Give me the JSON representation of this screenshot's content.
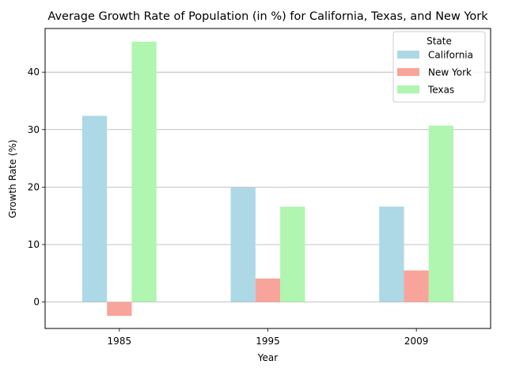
{
  "chart_data": {
    "type": "bar",
    "title": "Average Growth Rate of Population (in %) for California, Texas, and New York",
    "xlabel": "Year",
    "ylabel": "Growth Rate (%)",
    "categories": [
      "1985",
      "1995",
      "2009"
    ],
    "series": [
      {
        "name": "California",
        "values": [
          32.4,
          19.9,
          16.6
        ],
        "color": "#add8e6"
      },
      {
        "name": "New York",
        "values": [
          -2.4,
          4.1,
          5.5
        ],
        "color": "#f9a49a"
      },
      {
        "name": "Texas",
        "values": [
          45.3,
          16.6,
          30.7
        ],
        "color": "#b0f5b0"
      }
    ],
    "ylim": [
      -4.6,
      47.6
    ],
    "yticks": [
      0,
      10,
      20,
      30,
      40
    ],
    "grid": "horizontal",
    "legend": {
      "title": "State",
      "placement": "upper right"
    }
  }
}
